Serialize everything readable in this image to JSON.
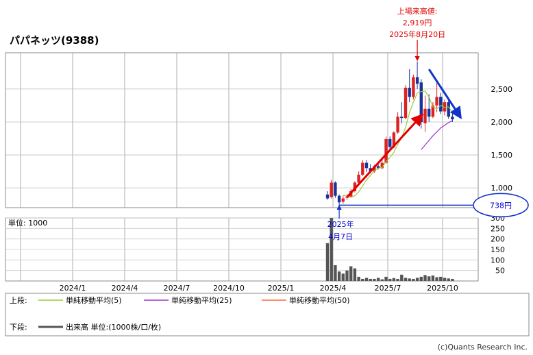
{
  "title": "パパネッツ(9388)",
  "copyright": "(c)Quants Research Inc.",
  "volume_unit_label": "単位: 1000",
  "legend": {
    "upper_label": "上段:",
    "lower_label": "下段:",
    "items": [
      {
        "name": "単純移動平均(5)",
        "color": "#99cc33"
      },
      {
        "name": "単純移動平均(25)",
        "color": "#9933cc"
      },
      {
        "name": "単純移動平均(50)",
        "color": "#ff6633"
      }
    ],
    "volume_item": "出来高 単位:(1000株/口/枚)"
  },
  "annotations": {
    "high_line1": "上場来高値:",
    "high_line2": "2,919円",
    "high_line3": "2025年8月20日",
    "low_line1": "2025年",
    "low_line2": "4月7日",
    "low_price": "738円"
  },
  "colors": {
    "up": "#dd2222",
    "down": "#1a3399",
    "grid": "#999999",
    "volume": "#555555",
    "accent_red": "#e00000",
    "accent_blue": "#0000cc"
  },
  "chart_data": {
    "type": "candlestick",
    "x_tick_labels": [
      "2024/1",
      "2024/4",
      "2024/7",
      "2024/10",
      "2025/1",
      "2025/4",
      "2025/7",
      "2025/10"
    ],
    "y_ticks": [
      1000,
      1500,
      2000,
      2500
    ],
    "y_tick_labels": [
      "1,000",
      "1,500",
      "2,000",
      "2,500"
    ],
    "ylim": [
      700,
      3050
    ],
    "volume_ticks": [
      50,
      100,
      150,
      200,
      250,
      300
    ],
    "volume_ylim": [
      0,
      300
    ],
    "weeks": [
      {
        "o": 900,
        "h": 950,
        "l": 820,
        "c": 840
      },
      {
        "o": 860,
        "h": 1120,
        "l": 840,
        "c": 1080
      },
      {
        "o": 1080,
        "h": 1100,
        "l": 850,
        "c": 880
      },
      {
        "o": 880,
        "h": 900,
        "l": 738,
        "c": 780
      },
      {
        "o": 790,
        "h": 880,
        "l": 760,
        "c": 840
      },
      {
        "o": 850,
        "h": 900,
        "l": 820,
        "c": 860
      },
      {
        "o": 870,
        "h": 980,
        "l": 850,
        "c": 950
      },
      {
        "o": 950,
        "h": 1100,
        "l": 930,
        "c": 1080
      },
      {
        "o": 1080,
        "h": 1250,
        "l": 1050,
        "c": 1200
      },
      {
        "o": 1200,
        "h": 1420,
        "l": 1180,
        "c": 1380
      },
      {
        "o": 1380,
        "h": 1420,
        "l": 1240,
        "c": 1300
      },
      {
        "o": 1300,
        "h": 1360,
        "l": 1220,
        "c": 1250
      },
      {
        "o": 1250,
        "h": 1350,
        "l": 1230,
        "c": 1330
      },
      {
        "o": 1330,
        "h": 1400,
        "l": 1280,
        "c": 1300
      },
      {
        "o": 1300,
        "h": 1420,
        "l": 1280,
        "c": 1380
      },
      {
        "o": 1380,
        "h": 1780,
        "l": 1370,
        "c": 1740
      },
      {
        "o": 1740,
        "h": 1780,
        "l": 1560,
        "c": 1620
      },
      {
        "o": 1620,
        "h": 1860,
        "l": 1600,
        "c": 1840
      },
      {
        "o": 1840,
        "h": 2150,
        "l": 1820,
        "c": 2080
      },
      {
        "o": 2080,
        "h": 2300,
        "l": 1980,
        "c": 2060
      },
      {
        "o": 2060,
        "h": 2560,
        "l": 2040,
        "c": 2520
      },
      {
        "o": 2520,
        "h": 2800,
        "l": 2300,
        "c": 2380
      },
      {
        "o": 2380,
        "h": 2720,
        "l": 2340,
        "c": 2680
      },
      {
        "o": 2680,
        "h": 2919,
        "l": 2500,
        "c": 2580
      },
      {
        "o": 2600,
        "h": 2650,
        "l": 1900,
        "c": 2000
      },
      {
        "o": 1980,
        "h": 2400,
        "l": 1850,
        "c": 2200
      },
      {
        "o": 2200,
        "h": 2420,
        "l": 2000,
        "c": 2080
      },
      {
        "o": 2080,
        "h": 2300,
        "l": 2060,
        "c": 2250
      },
      {
        "o": 2250,
        "h": 2600,
        "l": 2150,
        "c": 2380
      },
      {
        "o": 2380,
        "h": 2440,
        "l": 2120,
        "c": 2160
      },
      {
        "o": 2160,
        "h": 2340,
        "l": 2100,
        "c": 2300
      },
      {
        "o": 2300,
        "h": 2330,
        "l": 2050,
        "c": 2080
      },
      {
        "o": 2080,
        "h": 2150,
        "l": 2000,
        "c": 2040
      }
    ],
    "volume": [
      180,
      300,
      75,
      45,
      35,
      50,
      70,
      60,
      20,
      10,
      15,
      10,
      10,
      15,
      8,
      20,
      10,
      14,
      10,
      30,
      15,
      12,
      10,
      15,
      20,
      28,
      22,
      26,
      18,
      20,
      15,
      12,
      10
    ],
    "sma5": [
      null,
      null,
      null,
      null,
      890,
      870,
      860,
      880,
      940,
      1030,
      1120,
      1190,
      1260,
      1300,
      1310,
      1400,
      1460,
      1540,
      1660,
      1760,
      1920,
      2140,
      2300,
      2440,
      2460,
      2470,
      2380,
      2230,
      2200,
      2250,
      2220,
      2230,
      2150
    ],
    "sma25": [
      null,
      null,
      null,
      null,
      null,
      null,
      null,
      null,
      null,
      null,
      null,
      null,
      null,
      null,
      null,
      null,
      null,
      null,
      null,
      null,
      null,
      null,
      null,
      null,
      1580,
      1650,
      1720,
      1790,
      1850,
      1910,
      1950,
      1990,
      2020
    ]
  }
}
